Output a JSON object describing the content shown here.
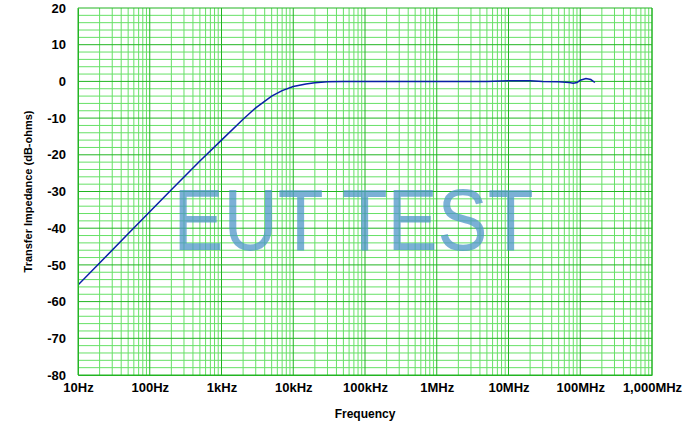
{
  "chart_data": {
    "type": "line",
    "xlabel": "Frequency",
    "ylabel": "Transfer Impedance (dB-ohms)",
    "annotations": [
      "EUT TEST"
    ],
    "x": [
      10,
      20,
      50,
      100,
      200,
      500,
      1000,
      2000,
      3000,
      5000,
      7000,
      10000,
      15000,
      20000,
      30000,
      50000,
      100000,
      1000000,
      5000000,
      10000000,
      20000000,
      30000000,
      50000000,
      70000000,
      80000000,
      90000000,
      100000000,
      120000000,
      140000000,
      160000000
    ],
    "values": [
      -55.5,
      -49.5,
      -41.5,
      -35.5,
      -29.5,
      -21.7,
      -16,
      -10.3,
      -7.2,
      -4,
      -2.5,
      -1.4,
      -0.7,
      -0.4,
      -0.1,
      0,
      0,
      0,
      0,
      0.2,
      0.2,
      0,
      -0.1,
      -0.3,
      -0.5,
      -0.3,
      0.3,
      0.8,
      0.5,
      -0.3
    ],
    "color": "#0a1fa8",
    "log": "x",
    "grid": true,
    "xlim": [
      10,
      1000000000
    ],
    "ylim": [
      -80,
      20
    ],
    "xticks": [
      {
        "value": 10,
        "label": "10Hz"
      },
      {
        "value": 100,
        "label": "100Hz"
      },
      {
        "value": 1000,
        "label": "1kHz"
      },
      {
        "value": 10000,
        "label": "10kHz"
      },
      {
        "value": 100000,
        "label": "100kHz"
      },
      {
        "value": 1000000,
        "label": "1MHz"
      },
      {
        "value": 10000000,
        "label": "10MHz"
      },
      {
        "value": 100000000,
        "label": "100MHz"
      },
      {
        "value": 1000000000,
        "label": "1,000MHz"
      }
    ],
    "yticks": [
      20,
      10,
      0,
      -10,
      -20,
      -30,
      -40,
      -50,
      -60,
      -70,
      -80
    ]
  }
}
